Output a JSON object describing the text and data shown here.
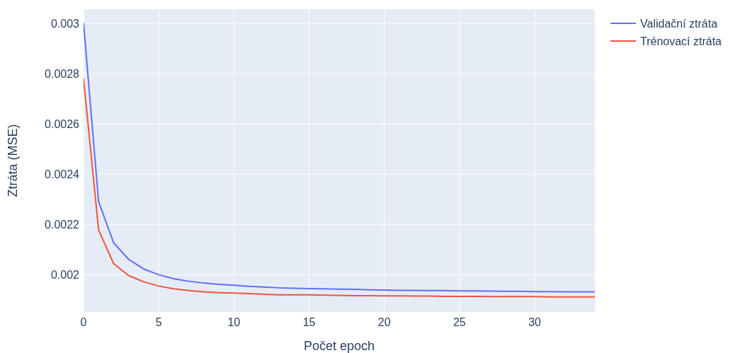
{
  "chart_data": {
    "type": "line",
    "xlabel": "Počet epoch",
    "ylabel": "Ztráta (MSE)",
    "x": [
      0,
      1,
      2,
      3,
      4,
      5,
      6,
      7,
      8,
      9,
      10,
      11,
      12,
      13,
      14,
      15,
      16,
      17,
      18,
      19,
      20,
      21,
      22,
      23,
      24,
      25,
      26,
      27,
      28,
      29,
      30,
      31,
      32,
      33,
      34
    ],
    "series": [
      {
        "name": "Validační ztráta",
        "color": "#636efa",
        "values": [
          0.003,
          0.002291,
          0.002127,
          0.002061,
          0.002023,
          0.002,
          0.001984,
          0.001974,
          0.001967,
          0.001962,
          0.001958,
          0.001954,
          0.001951,
          0.001948,
          0.001946,
          0.001945,
          0.001944,
          0.001943,
          0.001942,
          0.00194,
          0.001939,
          0.001938,
          0.001938,
          0.001937,
          0.001937,
          0.001936,
          0.001936,
          0.001935,
          0.001934,
          0.001934,
          0.001933,
          0.001933,
          0.001932,
          0.001932,
          0.001932
        ]
      },
      {
        "name": "Trénovací ztráta",
        "color": "#ef553b",
        "values": [
          0.002779,
          0.002178,
          0.002044,
          0.001997,
          0.001972,
          0.001955,
          0.001944,
          0.001937,
          0.001932,
          0.001929,
          0.001927,
          0.001925,
          0.001922,
          0.00192,
          0.00192,
          0.00192,
          0.001919,
          0.001918,
          0.001917,
          0.001917,
          0.001916,
          0.001916,
          0.001915,
          0.001915,
          0.001914,
          0.001914,
          0.001914,
          0.001913,
          0.001913,
          0.001913,
          0.001913,
          0.001912,
          0.001912,
          0.001912,
          0.001912
        ]
      }
    ],
    "xlim": [
      0,
      34
    ],
    "xticks": [
      0,
      5,
      10,
      15,
      20,
      25,
      30
    ],
    "ylim": [
      0.001852,
      0.003056
    ],
    "yticks": [
      0.002,
      0.0022,
      0.0024,
      0.0026,
      0.0028,
      0.003
    ],
    "grid": true,
    "legend": "top right",
    "marker": "none",
    "line_style": "solid"
  }
}
